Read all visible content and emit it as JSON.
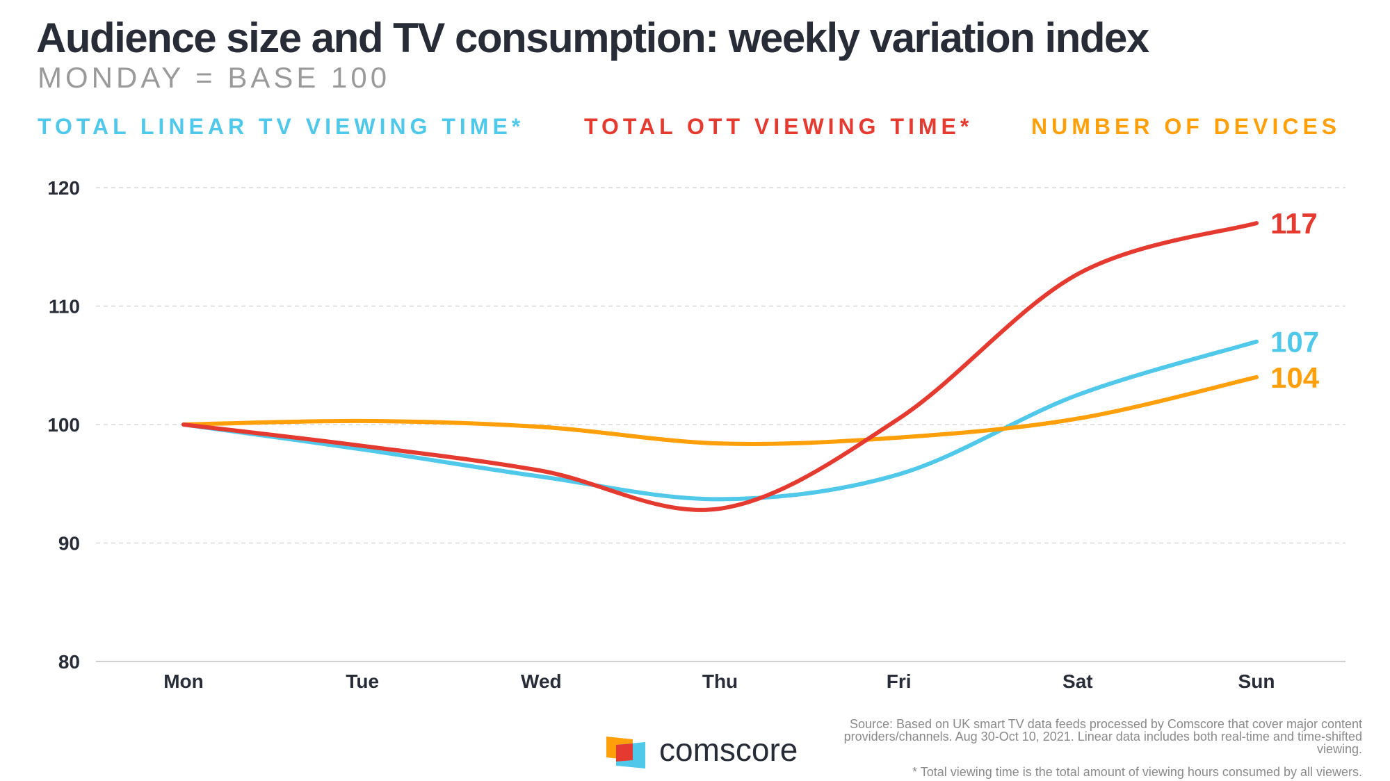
{
  "chart_data": {
    "type": "line",
    "title": "Audience size and TV consumption: weekly variation index",
    "subtitle": "MONDAY = BASE 100",
    "categories": [
      "Mon",
      "Tue",
      "Wed",
      "Thu",
      "Fri",
      "Sat",
      "Sun"
    ],
    "ylim": [
      80,
      120
    ],
    "yticks": [
      80,
      90,
      100,
      110,
      120
    ],
    "grid": true,
    "legend_position": "top",
    "series": [
      {
        "name": "TOTAL LINEAR TV VIEWING TIME*",
        "color": "#4fc8ea",
        "values": [
          100,
          97.9,
          95.6,
          93.7,
          95.8,
          102.5,
          107
        ],
        "end_label": "107"
      },
      {
        "name": "TOTAL OTT VIEWING TIME*",
        "color": "#e53a2f",
        "values": [
          100,
          98.2,
          96.1,
          92.9,
          100.5,
          112.7,
          117
        ],
        "end_label": "117"
      },
      {
        "name": "NUMBER OF DEVICES",
        "color": "#ff9f0a",
        "values": [
          100,
          100.3,
          99.8,
          98.4,
          98.9,
          100.5,
          104
        ],
        "end_label": "104"
      }
    ]
  },
  "source": "Source: Based on UK smart TV data feeds processed by Comscore that cover major content providers/channels. Aug 30-Oct 10, 2021. Linear data includes both real-time and time-shifted viewing.",
  "footnote": "* Total viewing time is the total amount of viewing hours consumed by all viewers.",
  "logo": {
    "text": "comscore",
    "colors": [
      "#ff9f0a",
      "#e53a2f",
      "#4fc8ea"
    ]
  }
}
